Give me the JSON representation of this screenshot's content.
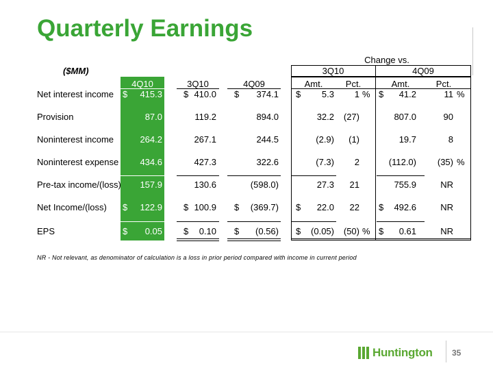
{
  "slide": {
    "title": "Quarterly Earnings",
    "units_label": "($MM)",
    "change_vs_label": "Change vs.",
    "group_headers": [
      "3Q10",
      "4Q09"
    ],
    "column_headers": [
      "4Q10",
      "3Q10",
      "4Q09",
      "Amt.",
      "Pct.",
      "Amt.",
      "Pct."
    ],
    "rows": [
      {
        "label": "Net interest income",
        "cells": [
          "$",
          "415.3",
          "$",
          "410.0",
          "$",
          "374.1",
          "$",
          "5.3",
          "1",
          "%",
          "$",
          "41.2",
          "11",
          "%"
        ]
      },
      {
        "label": "Provision",
        "cells": [
          "",
          "87.0",
          "",
          "119.2",
          "",
          "894.0",
          "",
          "32.2",
          "(27)",
          "",
          "",
          "807.0",
          "90",
          ""
        ]
      },
      {
        "label": "Noninterest income",
        "cells": [
          "",
          "264.2",
          "",
          "267.1",
          "",
          "244.5",
          "",
          "(2.9)",
          "(1)",
          "",
          "",
          "19.7",
          "8",
          ""
        ]
      },
      {
        "label": "Noninterest expense",
        "cells": [
          "",
          "434.6",
          "",
          "427.3",
          "",
          "322.6",
          "",
          "(7.3)",
          "2",
          "",
          "",
          "(112.0)",
          "(35)",
          "%"
        ]
      },
      {
        "label": "Pre-tax income/(loss)",
        "cells": [
          "",
          "157.9",
          "",
          "130.6",
          "",
          "(598.0)",
          "",
          "27.3",
          "21",
          "",
          "",
          "755.9",
          "NR",
          ""
        ]
      },
      {
        "label": "Net Income/(loss)",
        "cells": [
          "$",
          "122.9",
          "$",
          "100.9",
          "$",
          "(369.7)",
          "$",
          "22.0",
          "22",
          "",
          "$",
          "492.6",
          "NR",
          ""
        ]
      },
      {
        "label": "EPS",
        "cells": [
          "$",
          "0.05",
          "$",
          "0.10",
          "$",
          "(0.56)",
          "$",
          "(0.05)",
          "(50)",
          "%",
          "$",
          "0.61",
          "NR",
          ""
        ]
      }
    ],
    "footnote": "NR - Not relevant, as denominator of calculation is a loss in prior period compared with income in current period",
    "brand_name": "Huntington",
    "page_number": "35",
    "colors": {
      "accent_green": "#3aa536"
    }
  }
}
